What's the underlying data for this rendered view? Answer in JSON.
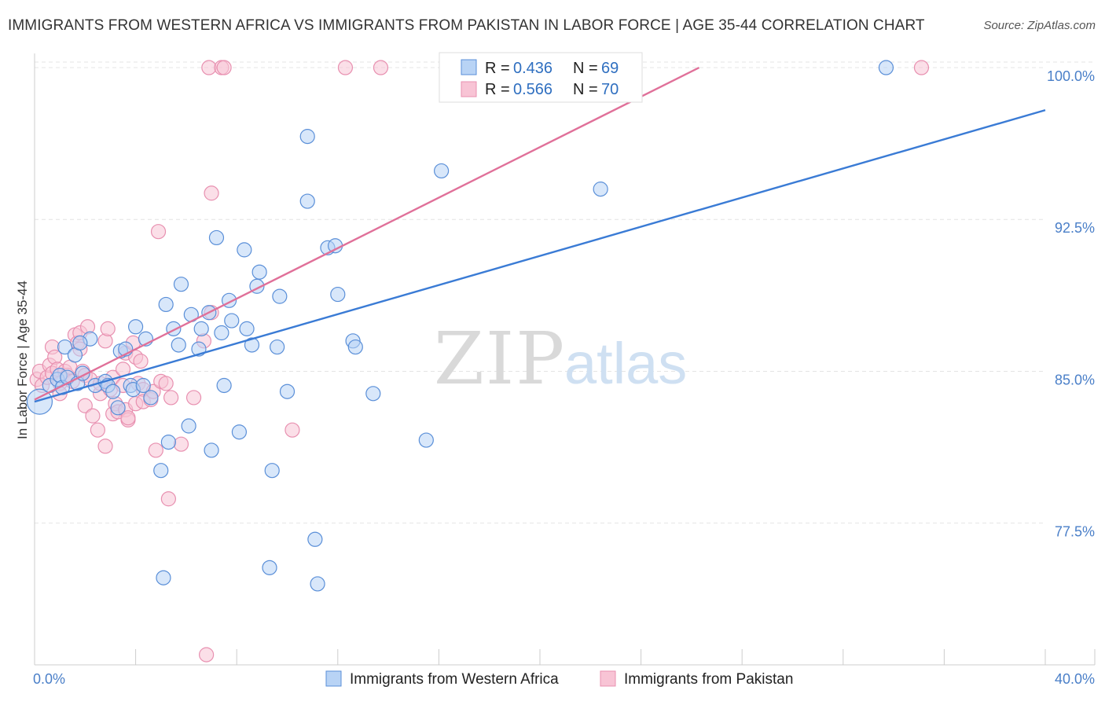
{
  "header": {
    "title": "IMMIGRANTS FROM WESTERN AFRICA VS IMMIGRANTS FROM PAKISTAN IN LABOR FORCE | AGE 35-44 CORRELATION CHART",
    "source": "Source: ZipAtlas.com"
  },
  "watermark": {
    "zip": "ZIP",
    "atlas": "atlas"
  },
  "colors": {
    "blue": "#3a7bd5",
    "blue_fill": "#b8d3f5",
    "blue_stroke": "#5a8fd8",
    "pink": "#e07099",
    "pink_fill": "#f8c4d5",
    "pink_stroke": "#e890b0",
    "grid": "#e4e4e4",
    "tick_text": "#4a7fc8"
  },
  "chart_data": {
    "type": "scatter",
    "title": "IMMIGRANTS FROM WESTERN AFRICA VS IMMIGRANTS FROM PAKISTAN IN LABOR FORCE | AGE 35-44 CORRELATION CHART",
    "xlabel": "",
    "ylabel": "In Labor Force | Age 35-44",
    "xlim": [
      0,
      40
    ],
    "ylim": [
      70.5,
      100.7
    ],
    "x_tick_labels": [
      "0.0%",
      "40.0%"
    ],
    "y_ticks": [
      77.5,
      85.0,
      92.5,
      100.0
    ],
    "y_tick_labels": [
      "77.5%",
      "85.0%",
      "92.5%",
      "100.0%"
    ],
    "grid": true,
    "legend_position": "top-center",
    "stats_legend": [
      {
        "r_label": "R =",
        "r_value": "0.436",
        "n_label": "N =",
        "n_value": "69"
      },
      {
        "r_label": "R =",
        "r_value": "0.566",
        "n_label": "N =",
        "n_value": "70"
      }
    ],
    "series": [
      {
        "name": "Immigrants from Western Africa",
        "color": "#3a7bd5",
        "trend": {
          "x": [
            0,
            40
          ],
          "y": [
            83.5,
            97.9
          ]
        },
        "points": [
          [
            0.2,
            83.5
          ],
          [
            0.6,
            84.3
          ],
          [
            0.9,
            84.6
          ],
          [
            1.0,
            84.8
          ],
          [
            1.1,
            84.2
          ],
          [
            1.3,
            84.7
          ],
          [
            1.2,
            86.2
          ],
          [
            1.6,
            85.8
          ],
          [
            1.7,
            84.4
          ],
          [
            1.9,
            84.9
          ],
          [
            2.2,
            86.6
          ],
          [
            2.4,
            84.3
          ],
          [
            2.8,
            84.5
          ],
          [
            2.9,
            84.3
          ],
          [
            3.1,
            84.0
          ],
          [
            3.3,
            83.2
          ],
          [
            3.4,
            86.0
          ],
          [
            3.6,
            86.1
          ],
          [
            3.8,
            84.3
          ],
          [
            3.9,
            84.1
          ],
          [
            4.0,
            87.2
          ],
          [
            4.3,
            84.3
          ],
          [
            4.4,
            86.6
          ],
          [
            4.6,
            83.7
          ],
          [
            5.0,
            80.1
          ],
          [
            5.1,
            74.8
          ],
          [
            5.2,
            88.3
          ],
          [
            5.3,
            81.5
          ],
          [
            5.5,
            87.1
          ],
          [
            5.7,
            86.3
          ],
          [
            5.8,
            89.3
          ],
          [
            6.1,
            82.3
          ],
          [
            6.2,
            87.8
          ],
          [
            6.5,
            86.1
          ],
          [
            6.6,
            87.1
          ],
          [
            6.9,
            87.9
          ],
          [
            7.0,
            81.1
          ],
          [
            7.2,
            91.6
          ],
          [
            7.4,
            86.9
          ],
          [
            7.5,
            84.3
          ],
          [
            7.7,
            88.5
          ],
          [
            7.8,
            87.5
          ],
          [
            8.1,
            82.0
          ],
          [
            8.3,
            91.0
          ],
          [
            8.4,
            87.1
          ],
          [
            8.6,
            86.3
          ],
          [
            8.8,
            89.2
          ],
          [
            8.9,
            89.9
          ],
          [
            9.3,
            75.3
          ],
          [
            9.4,
            80.1
          ],
          [
            9.6,
            86.2
          ],
          [
            9.7,
            88.7
          ],
          [
            10.0,
            84.0
          ],
          [
            10.8,
            96.6
          ],
          [
            10.8,
            93.4
          ],
          [
            11.1,
            76.7
          ],
          [
            11.2,
            74.5
          ],
          [
            11.6,
            91.1
          ],
          [
            11.9,
            91.2
          ],
          [
            12.0,
            88.8
          ],
          [
            12.6,
            86.5
          ],
          [
            12.7,
            86.2
          ],
          [
            13.4,
            83.9
          ],
          [
            15.5,
            81.6
          ],
          [
            16.1,
            94.9
          ],
          [
            17.0,
            99.3
          ],
          [
            22.4,
            94.0
          ],
          [
            33.7,
            100.0
          ],
          [
            1.8,
            86.4
          ]
        ]
      },
      {
        "name": "Immigrants from Pakistan",
        "color": "#e07099",
        "trend": {
          "x": [
            0,
            26.3
          ],
          "y": [
            83.6,
            100.0
          ]
        },
        "points": [
          [
            0.1,
            84.6
          ],
          [
            0.2,
            85.0
          ],
          [
            0.3,
            84.3
          ],
          [
            0.5,
            84.7
          ],
          [
            0.6,
            85.3
          ],
          [
            0.7,
            84.9
          ],
          [
            0.7,
            86.2
          ],
          [
            0.8,
            85.7
          ],
          [
            0.9,
            85.1
          ],
          [
            1.0,
            84.4
          ],
          [
            1.0,
            83.9
          ],
          [
            1.2,
            85.0
          ],
          [
            1.3,
            84.8
          ],
          [
            1.4,
            85.2
          ],
          [
            1.5,
            84.5
          ],
          [
            1.6,
            86.8
          ],
          [
            1.7,
            86.4
          ],
          [
            1.8,
            86.1
          ],
          [
            1.8,
            86.9
          ],
          [
            1.9,
            85.0
          ],
          [
            2.0,
            83.3
          ],
          [
            2.0,
            84.8
          ],
          [
            2.1,
            87.2
          ],
          [
            2.2,
            84.6
          ],
          [
            2.3,
            82.8
          ],
          [
            2.5,
            82.1
          ],
          [
            2.6,
            83.9
          ],
          [
            2.6,
            84.4
          ],
          [
            2.8,
            86.5
          ],
          [
            2.8,
            81.3
          ],
          [
            2.9,
            87.1
          ],
          [
            3.0,
            84.1
          ],
          [
            3.1,
            84.7
          ],
          [
            3.1,
            82.9
          ],
          [
            3.2,
            83.4
          ],
          [
            3.3,
            83.0
          ],
          [
            3.5,
            84.3
          ],
          [
            3.5,
            85.1
          ],
          [
            3.6,
            85.9
          ],
          [
            3.6,
            83.1
          ],
          [
            3.7,
            82.6
          ],
          [
            3.7,
            82.7
          ],
          [
            3.9,
            86.4
          ],
          [
            4.0,
            83.4
          ],
          [
            4.0,
            85.7
          ],
          [
            4.1,
            84.4
          ],
          [
            4.2,
            85.5
          ],
          [
            4.3,
            84.1
          ],
          [
            4.3,
            83.5
          ],
          [
            4.6,
            83.6
          ],
          [
            4.7,
            84.0
          ],
          [
            4.8,
            81.1
          ],
          [
            4.9,
            91.9
          ],
          [
            5.0,
            84.5
          ],
          [
            5.2,
            84.4
          ],
          [
            5.3,
            78.7
          ],
          [
            5.4,
            83.7
          ],
          [
            5.8,
            81.4
          ],
          [
            6.3,
            83.7
          ],
          [
            6.7,
            86.5
          ],
          [
            6.8,
            71.0
          ],
          [
            6.9,
            100.0
          ],
          [
            7.0,
            93.8
          ],
          [
            7.0,
            87.9
          ],
          [
            7.4,
            100.0
          ],
          [
            7.5,
            100.0
          ],
          [
            10.2,
            82.1
          ],
          [
            12.3,
            100.0
          ],
          [
            13.7,
            100.0
          ],
          [
            35.1,
            100.0
          ]
        ]
      }
    ]
  },
  "bottom_legend": [
    {
      "label": "Immigrants from Western Africa"
    },
    {
      "label": "Immigrants from Pakistan"
    }
  ]
}
